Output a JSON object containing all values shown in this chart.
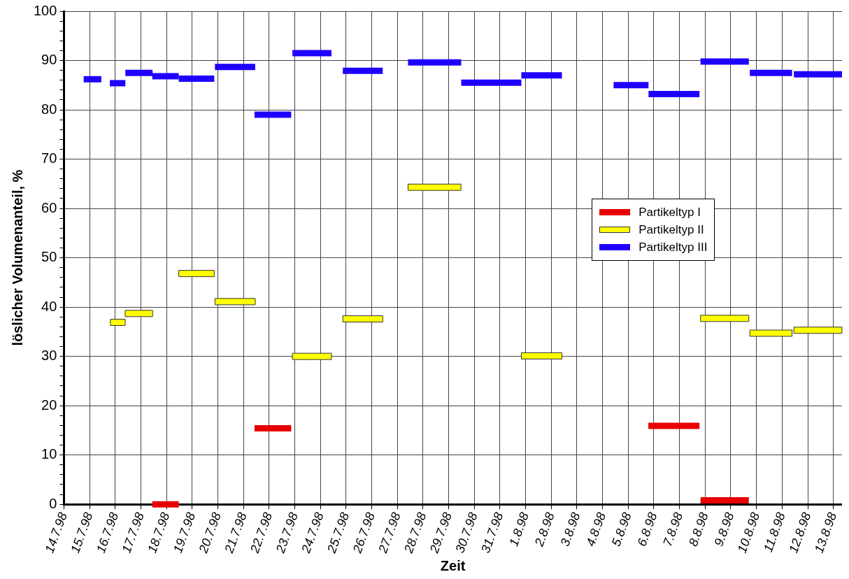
{
  "chart_data": {
    "type": "line",
    "xlabel": "Zeit",
    "ylabel": "löslicher Volumenanteil, %",
    "legend": "right",
    "grid": true,
    "marker": "none",
    "line_style": "solid",
    "xlim": [
      "1998-07-14",
      "1998-08-13T08:00"
    ],
    "xticks": [
      {
        "value": "1998-07-14",
        "label": "14.7.98"
      },
      {
        "value": "1998-07-15",
        "label": "15.7.98"
      },
      {
        "value": "1998-07-16",
        "label": "16.7.98"
      },
      {
        "value": "1998-07-17",
        "label": "17.7.98"
      },
      {
        "value": "1998-07-18",
        "label": "18.7.98"
      },
      {
        "value": "1998-07-19",
        "label": "19.7.98"
      },
      {
        "value": "1998-07-20",
        "label": "20.7.98"
      },
      {
        "value": "1998-07-21",
        "label": "21.7.98"
      },
      {
        "value": "1998-07-22",
        "label": "22.7.98"
      },
      {
        "value": "1998-07-23",
        "label": "23.7.98"
      },
      {
        "value": "1998-07-24",
        "label": "24.7.98"
      },
      {
        "value": "1998-07-25",
        "label": "25.7.98"
      },
      {
        "value": "1998-07-26",
        "label": "26.7.98"
      },
      {
        "value": "1998-07-27",
        "label": "27.7.98"
      },
      {
        "value": "1998-07-28",
        "label": "28.7.98"
      },
      {
        "value": "1998-07-29",
        "label": "29.7.98"
      },
      {
        "value": "1998-07-30",
        "label": "30.7.98"
      },
      {
        "value": "1998-07-31",
        "label": "31.7.98"
      },
      {
        "value": "1998-08-01",
        "label": "1.8.98"
      },
      {
        "value": "1998-08-02",
        "label": "2.8.98"
      },
      {
        "value": "1998-08-03",
        "label": "3.8.98"
      },
      {
        "value": "1998-08-04",
        "label": "4.8.98"
      },
      {
        "value": "1998-08-05",
        "label": "5.8.98"
      },
      {
        "value": "1998-08-06",
        "label": "6.8.98"
      },
      {
        "value": "1998-08-07",
        "label": "7.8.98"
      },
      {
        "value": "1998-08-08",
        "label": "8.8.98"
      },
      {
        "value": "1998-08-09",
        "label": "9.8.98"
      },
      {
        "value": "1998-08-10",
        "label": "10.8.98"
      },
      {
        "value": "1998-08-11",
        "label": "11.8.98"
      },
      {
        "value": "1998-08-12",
        "label": "12.8.98"
      },
      {
        "value": "1998-08-13",
        "label": "13.8.98"
      }
    ],
    "ylim": [
      0,
      100
    ],
    "yticks": [
      0,
      {
        "value": 2,
        "label": null
      },
      {
        "value": 4,
        "label": null
      },
      {
        "value": 6,
        "label": null
      },
      {
        "value": 8,
        "label": null
      },
      10,
      {
        "value": 12,
        "label": null
      },
      {
        "value": 14,
        "label": null
      },
      {
        "value": 16,
        "label": null
      },
      {
        "value": 18,
        "label": null
      },
      20,
      {
        "value": 22,
        "label": null
      },
      {
        "value": 24,
        "label": null
      },
      {
        "value": 26,
        "label": null
      },
      {
        "value": 28,
        "label": null
      },
      30,
      {
        "value": 32,
        "label": null
      },
      {
        "value": 34,
        "label": null
      },
      {
        "value": 36,
        "label": null
      },
      {
        "value": 38,
        "label": null
      },
      40,
      {
        "value": 42,
        "label": null
      },
      {
        "value": 44,
        "label": null
      },
      {
        "value": 46,
        "label": null
      },
      {
        "value": 48,
        "label": null
      },
      50,
      {
        "value": 52,
        "label": null
      },
      {
        "value": 54,
        "label": null
      },
      {
        "value": 56,
        "label": null
      },
      {
        "value": 58,
        "label": null
      },
      60,
      {
        "value": 62,
        "label": null
      },
      {
        "value": 64,
        "label": null
      },
      {
        "value": 66,
        "label": null
      },
      {
        "value": 68,
        "label": null
      },
      70,
      {
        "value": 72,
        "label": null
      },
      {
        "value": 74,
        "label": null
      },
      {
        "value": 76,
        "label": null
      },
      {
        "value": 78,
        "label": null
      },
      80,
      {
        "value": 82,
        "label": null
      },
      {
        "value": 84,
        "label": null
      },
      {
        "value": 86,
        "label": null
      },
      {
        "value": 88,
        "label": null
      },
      90,
      {
        "value": 92,
        "label": null
      },
      {
        "value": 94,
        "label": null
      },
      {
        "value": 96,
        "label": null
      },
      {
        "value": 98,
        "label": null
      },
      100
    ],
    "series": [
      {
        "name": "Partikeltyp I",
        "color": "#e80000",
        "x": [
          "1998-07-17T10:40",
          "1998-07-18T11:30",
          "1998-07-21T10:20",
          "1998-07-22T20:40",
          "1998-08-05T18:50",
          "1998-08-07T18:40",
          "1998-08-07T19:40",
          "1998-08-09T16:50"
        ],
        "values": [
          0,
          0,
          15.4,
          15.4,
          15.9,
          15.9,
          0.8,
          0.8
        ]
      },
      {
        "name": "Partikeltyp II",
        "color": "#ffff00",
        "x": [
          "1998-07-15T19:30",
          "1998-07-16T09:20",
          "1998-07-16T09:20",
          "1998-07-17T11:00",
          "1998-07-18T11:30",
          "1998-07-19T20:40",
          "1998-07-19T21:20",
          "1998-07-21T11:00",
          "1998-07-22T21:50",
          "1998-07-24T10:20",
          "1998-07-24T21:00",
          "1998-07-26T10:20",
          "1998-07-27T10:00",
          "1998-07-29T11:30",
          "1998-07-31T20:00",
          "1998-08-02T10:00",
          "1998-08-07T19:40",
          "1998-08-09T16:50",
          "1998-08-09T17:50",
          "1998-08-11T09:20",
          "1998-08-11T11:00",
          "1998-08-13T08:00"
        ],
        "values": [
          36.9,
          36.9,
          38.7,
          38.7,
          46.8,
          46.8,
          41.1,
          41.1,
          30.0,
          30.0,
          37.6,
          37.6,
          64.3,
          64.3,
          30.1,
          30.1,
          37.7,
          37.7,
          34.7,
          34.7,
          35.3,
          35.3
        ]
      },
      {
        "name": "Partikeltyp III",
        "color": "#1e00ff",
        "x": [
          "1998-07-14T18:30",
          "1998-07-15T11:00",
          "1998-07-15T19:00",
          "1998-07-16T09:30",
          "1998-07-16T09:30",
          "1998-07-17T11:00",
          "1998-07-17T10:40",
          "1998-07-18T11:30",
          "1998-07-18T11:30",
          "1998-07-19T20:40",
          "1998-07-19T21:20",
          "1998-07-21T11:00",
          "1998-07-21T10:20",
          "1998-07-22T20:40",
          "1998-07-22T21:50",
          "1998-07-24T10:20",
          "1998-07-24T21:00",
          "1998-07-26T10:20",
          "1998-07-27T10:00",
          "1998-07-29T11:45",
          "1998-07-29T11:45",
          "1998-07-31T20:00",
          "1998-07-31T20:00",
          "1998-08-02T10:00",
          "1998-08-04T10:20",
          "1998-08-05T19:00",
          "1998-08-05T19:00",
          "1998-08-07T18:40",
          "1998-08-07T19:40",
          "1998-08-09T16:50",
          "1998-08-09T17:50",
          "1998-08-11T09:20",
          "1998-08-11T11:00",
          "1998-08-13T08:00"
        ],
        "values": [
          86.2,
          86.2,
          85.4,
          85.4,
          87.5,
          87.5,
          86.8,
          86.8,
          86.3,
          86.3,
          88.7,
          88.7,
          79.0,
          79.0,
          91.5,
          91.5,
          87.9,
          87.9,
          89.6,
          89.6,
          85.5,
          85.5,
          87.0,
          87.0,
          85.0,
          85.0,
          83.2,
          83.2,
          89.8,
          89.8,
          87.5,
          87.5,
          87.2,
          87.2
        ]
      }
    ]
  }
}
